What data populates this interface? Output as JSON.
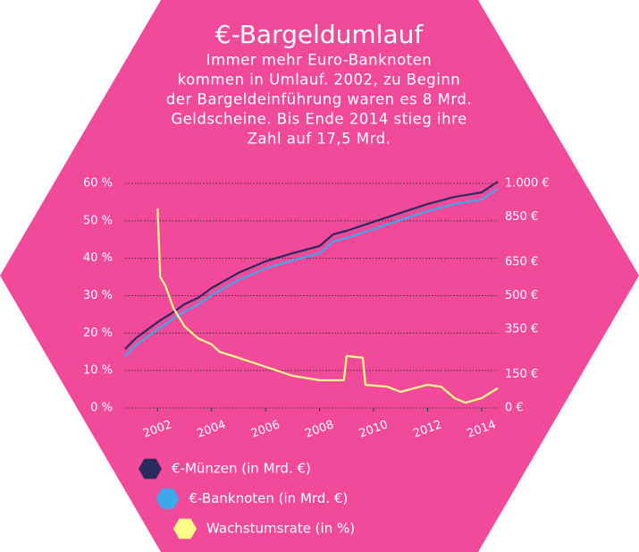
{
  "chart_data": {
    "type": "line",
    "title": "€-Bargeldumlauf",
    "subtitle": [
      "Immer mehr Euro-Banknoten",
      "kommen in Umlauf. 2002, zu Beginn",
      "der Bargeldeinführung waren es 8 Mrd.",
      "Geldscheine. Bis Ende 2014 stieg ihre",
      "Zahl auf 17,5 Mrd."
    ],
    "xlim": [
      2000.8,
      2014.6
    ],
    "xticks": [
      2002,
      2004,
      2006,
      2008,
      2010,
      2012,
      2014
    ],
    "ylim": [
      0,
      60
    ],
    "yticks": [
      {
        "value": 0,
        "label": "0 %"
      },
      {
        "value": 10,
        "label": "10 %"
      },
      {
        "value": 20,
        "label": "20 %"
      },
      {
        "value": 30,
        "label": "30 %"
      },
      {
        "value": 40,
        "label": "40 %"
      },
      {
        "value": 50,
        "label": "50 %"
      },
      {
        "value": 60,
        "label": "60 %"
      }
    ],
    "y2lim": [
      0,
      1000
    ],
    "y2ticks": [
      {
        "value": 0,
        "label": "0 €"
      },
      {
        "value": 150,
        "label": "150 €"
      },
      {
        "value": 350,
        "label": "350 €"
      },
      {
        "value": 500,
        "label": "500 €"
      },
      {
        "value": 650,
        "label": "650 €"
      },
      {
        "value": 850,
        "label": "850 €"
      },
      {
        "value": 1000,
        "label": "1.000 €"
      }
    ],
    "grid": true,
    "series": [
      {
        "name": "€-Münzen (in Mrd. €)",
        "color": "#2b2a5e",
        "axis": "y2",
        "x": [
          2000.8,
          2001.2,
          2002,
          2002.5,
          2003,
          2003.5,
          2004,
          2005,
          2006,
          2007,
          2008,
          2008.5,
          2009,
          2010,
          2011,
          2012,
          2013,
          2014,
          2014.6
        ],
        "values": [
          263,
          311,
          382,
          420,
          462,
          490,
          534,
          602,
          653,
          689,
          721,
          773,
          789,
          829,
          869,
          908,
          940,
          960,
          1008
        ]
      },
      {
        "name": "€-Banknoten (in Mrd. €)",
        "color": "#3ba9ea",
        "axis": "y2",
        "x": [
          2000.8,
          2001.2,
          2002,
          2002.5,
          2003,
          2003.5,
          2004,
          2005,
          2006,
          2007,
          2008,
          2008.5,
          2009,
          2010,
          2011,
          2012,
          2013,
          2014,
          2014.6
        ],
        "values": [
          231,
          280,
          350,
          390,
          430,
          460,
          502,
          570,
          621,
          657,
          689,
          741,
          757,
          797,
          837,
          876,
          908,
          928,
          976
        ]
      },
      {
        "name": "Wachstumsrate (in %)",
        "color": "#ffff88",
        "axis": "y",
        "x": [
          2002,
          2002.1,
          2002.3,
          2002.6,
          2003,
          2003.5,
          2004,
          2004.3,
          2005,
          2006,
          2007,
          2008,
          2008.9,
          2009,
          2009.6,
          2009.7,
          2010.5,
          2011,
          2012,
          2012.5,
          2013,
          2013.4,
          2014,
          2014.6
        ],
        "values": [
          53.3,
          35,
          32.5,
          26.5,
          21.8,
          18.6,
          17,
          15,
          13.4,
          11,
          8.6,
          7.4,
          7.4,
          13.9,
          13.4,
          6.2,
          5.7,
          4.3,
          6.2,
          5.7,
          2.6,
          1.4,
          2.6,
          5.3
        ]
      }
    ]
  }
}
